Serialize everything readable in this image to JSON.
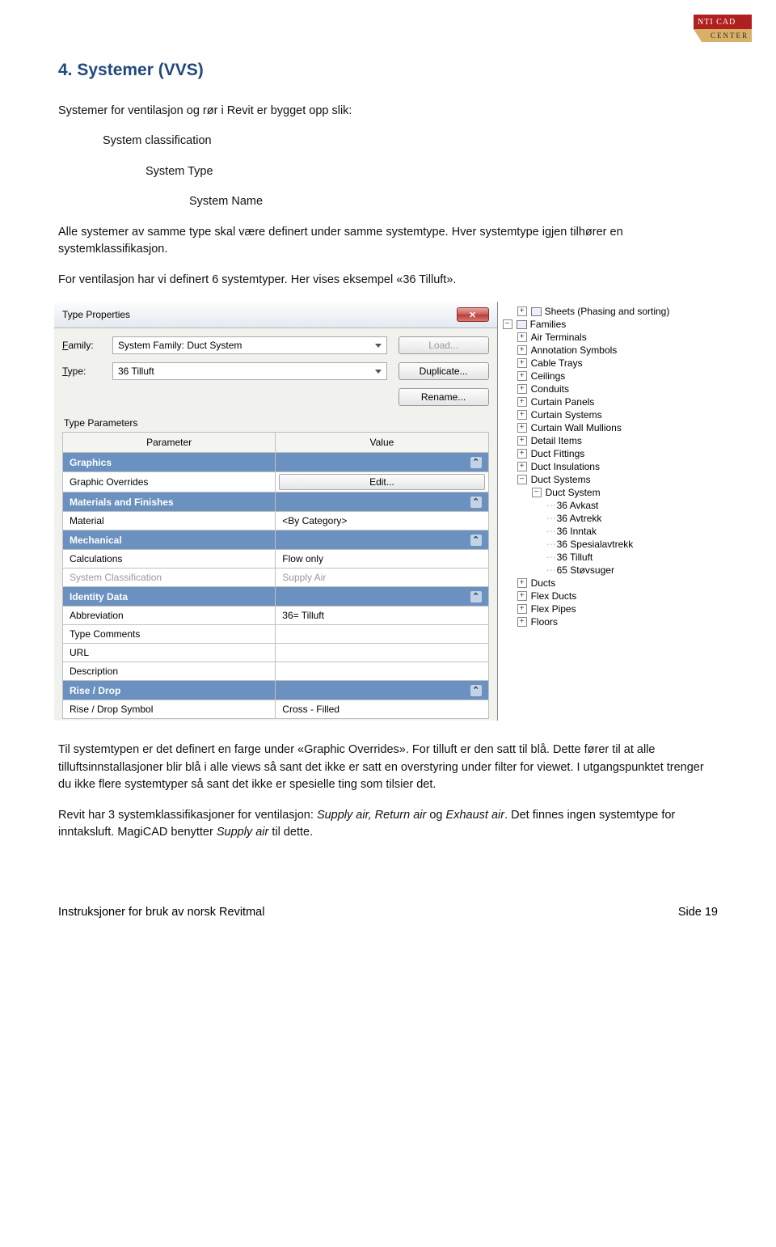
{
  "logo": {
    "top": "NTI CAD",
    "bottom": "CENTER"
  },
  "heading": "4.   Systemer (VVS)",
  "para1": "Systemer for ventilasjon og rør i Revit er bygget opp slik:",
  "hier1": "System classification",
  "hier2": "System Type",
  "hier3": "System Name",
  "para2": "Alle systemer av samme type skal være definert under samme systemtype. Hver systemtype igjen tilhører en systemklassifikasjon.",
  "para3": "For ventilasjon har vi definert 6 systemtyper. Her vises eksempel «36 Tilluft».",
  "para4a": "Til systemtypen er det definert en farge under «Graphic Overrides». For tilluft er den satt til blå. Dette fører til at alle tilluftsinnstallasjoner blir blå i alle views så sant det ikke er satt en overstyring under filter for viewet. I utgangspunktet trenger du ikke flere systemtyper så sant det ikke er spesielle ting som tilsier det.",
  "para5a": "Revit har 3 systemklassifikasjoner for ventilasjon: ",
  "para5_italic": "Supply air, Return air",
  "para5b": " og ",
  "para5_italic2": "Exhaust air",
  "para5c": ". Det finnes ingen systemtype for inntaksluft. MagiCAD benytter ",
  "para5_italic3": "Supply air",
  "para5d": " til dette.",
  "footer_left": "Instruksjoner for bruk av norsk Revitmal",
  "footer_right": "Side 19",
  "dialog": {
    "title": "Type Properties",
    "close": "✕",
    "family_label": "Family:",
    "family_value": "System Family: Duct System",
    "type_label": "Type:",
    "type_value": "36 Tilluft",
    "btn_load": "Load...",
    "btn_duplicate": "Duplicate...",
    "btn_rename": "Rename...",
    "type_params": "Type Parameters",
    "col_param": "Parameter",
    "col_value": "Value",
    "groups": {
      "graphics": "Graphics",
      "materials": "Materials and Finishes",
      "mechanical": "Mechanical",
      "identity": "Identity Data",
      "rise": "Rise / Drop"
    },
    "rows": {
      "graphic_overrides": "Graphic Overrides",
      "edit": "Edit...",
      "material": "Material",
      "by_category": "<By Category>",
      "calculations": "Calculations",
      "flow_only": "Flow only",
      "sys_class": "System Classification",
      "supply_air": "Supply Air",
      "abbrev": "Abbreviation",
      "abbrev_val": "36= Tilluft",
      "type_comments": "Type Comments",
      "url": "URL",
      "description": "Description",
      "rise_drop": "Rise / Drop Symbol",
      "cross_filled": "Cross - Filled"
    }
  },
  "tree": {
    "items": [
      {
        "lvl": 1,
        "tw": "+",
        "label": "Sheets (Phasing and sorting)",
        "ico": true
      },
      {
        "lvl": 0,
        "tw": "−",
        "label": "Families",
        "ico": true
      },
      {
        "lvl": 1,
        "tw": "+",
        "label": "Air Terminals"
      },
      {
        "lvl": 1,
        "tw": "+",
        "label": "Annotation Symbols"
      },
      {
        "lvl": 1,
        "tw": "+",
        "label": "Cable Trays"
      },
      {
        "lvl": 1,
        "tw": "+",
        "label": "Ceilings"
      },
      {
        "lvl": 1,
        "tw": "+",
        "label": "Conduits"
      },
      {
        "lvl": 1,
        "tw": "+",
        "label": "Curtain Panels"
      },
      {
        "lvl": 1,
        "tw": "+",
        "label": "Curtain Systems"
      },
      {
        "lvl": 1,
        "tw": "+",
        "label": "Curtain Wall Mullions"
      },
      {
        "lvl": 1,
        "tw": "+",
        "label": "Detail Items"
      },
      {
        "lvl": 1,
        "tw": "+",
        "label": "Duct Fittings"
      },
      {
        "lvl": 1,
        "tw": "+",
        "label": "Duct Insulations"
      },
      {
        "lvl": 1,
        "tw": "−",
        "label": "Duct Systems"
      },
      {
        "lvl": 2,
        "tw": "−",
        "label": "Duct System"
      },
      {
        "lvl": 3,
        "tw": "",
        "label": "36 Avkast"
      },
      {
        "lvl": 3,
        "tw": "",
        "label": "36 Avtrekk"
      },
      {
        "lvl": 3,
        "tw": "",
        "label": "36 Inntak"
      },
      {
        "lvl": 3,
        "tw": "",
        "label": "36 Spesialavtrekk"
      },
      {
        "lvl": 3,
        "tw": "",
        "label": "36 Tilluft"
      },
      {
        "lvl": 3,
        "tw": "",
        "label": "65 Støvsuger"
      },
      {
        "lvl": 1,
        "tw": "+",
        "label": "Ducts"
      },
      {
        "lvl": 1,
        "tw": "+",
        "label": "Flex Ducts"
      },
      {
        "lvl": 1,
        "tw": "+",
        "label": "Flex Pipes"
      },
      {
        "lvl": 1,
        "tw": "+",
        "label": "Floors"
      }
    ]
  }
}
